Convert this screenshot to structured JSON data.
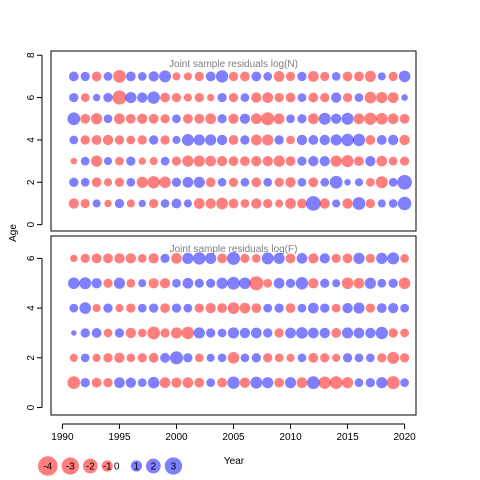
{
  "chart_data": [
    {
      "type": "scatter",
      "subtype": "bubble",
      "title": "Joint sample residuals log(N)",
      "ylabel": "Age",
      "xlim": [
        1989,
        2021
      ],
      "ylim": [
        -0.3,
        8.2
      ],
      "yticks": [
        0,
        2,
        4,
        6,
        8
      ],
      "ages": [
        1,
        2,
        3,
        4,
        5,
        6,
        7
      ],
      "years": [
        1991,
        1992,
        1993,
        1994,
        1995,
        1996,
        1997,
        1998,
        1999,
        2000,
        2001,
        2002,
        2003,
        2004,
        2005,
        2006,
        2007,
        2008,
        2009,
        2010,
        2011,
        2012,
        2013,
        2014,
        2015,
        2016,
        2017,
        2018,
        2019,
        2020
      ],
      "residuals": [
        [
          -0.8,
          -0.6,
          0.4,
          -0.3,
          0.6,
          -0.4,
          0.3,
          -0.6,
          0.5,
          0.7,
          0.4,
          -0.9,
          -0.8,
          -1.1,
          -0.7,
          -0.5,
          -0.8,
          -0.6,
          -0.4,
          -0.9,
          -0.7,
          2.0,
          -0.8,
          0.4,
          -0.8,
          1.4,
          -0.6,
          0.4,
          0.5,
          1.6
        ],
        [
          0.6,
          0.5,
          -0.7,
          -0.4,
          -0.6,
          0.5,
          -1.0,
          -1.3,
          -1.1,
          0.6,
          0.9,
          1.0,
          -0.7,
          0.5,
          -0.6,
          0.5,
          -0.7,
          0.5,
          -0.6,
          -0.8,
          0.5,
          -0.7,
          0.5,
          1.4,
          0.2,
          0.4,
          -0.5,
          -1.2,
          0.5,
          2.0
        ],
        [
          -0.2,
          0.5,
          -1.0,
          0.4,
          -0.5,
          0.6,
          -0.3,
          -0.4,
          0.5,
          -0.6,
          -1.0,
          -1.0,
          -0.9,
          -0.8,
          -0.7,
          -0.7,
          -0.8,
          -0.8,
          -1.0,
          -0.7,
          0.6,
          0.8,
          0.8,
          -1.0,
          -1.2,
          -0.7,
          0.8,
          -0.9,
          -0.5,
          -0.6
        ],
        [
          0.5,
          -0.6,
          -0.7,
          -0.8,
          -0.6,
          -0.5,
          -0.6,
          0.6,
          -0.6,
          0.4,
          1.2,
          1.0,
          1.0,
          0.8,
          -0.7,
          0.6,
          -0.9,
          -1.0,
          0.6,
          -0.5,
          0.8,
          0.7,
          0.8,
          1.0,
          1.3,
          1.3,
          -0.7,
          0.7,
          0.8,
          -0.8
        ],
        [
          1.4,
          -0.7,
          -1.0,
          0.5,
          -0.9,
          -0.7,
          -0.8,
          -0.7,
          -0.6,
          0.5,
          -0.7,
          -0.7,
          -0.9,
          0.6,
          -0.8,
          0.8,
          -0.9,
          -1.5,
          -0.9,
          0.5,
          0.6,
          -0.9,
          1.2,
          0.8,
          1.2,
          -0.9,
          -1.3,
          -1.1,
          -0.9,
          -0.7
        ],
        [
          0.6,
          -0.5,
          0.3,
          0.6,
          -1.8,
          1.0,
          0.8,
          1.3,
          -0.7,
          -0.6,
          -0.4,
          -0.6,
          -0.3,
          0.6,
          -0.6,
          0.5,
          -0.8,
          -0.9,
          -0.6,
          -0.7,
          0.5,
          -0.7,
          -0.6,
          0.8,
          -0.6,
          0.5,
          -1.1,
          -1.0,
          -0.9,
          0.2
        ],
        [
          0.7,
          0.6,
          -0.7,
          0.5,
          -1.4,
          0.7,
          0.5,
          0.8,
          1.2,
          -0.4,
          -0.4,
          -0.6,
          0.7,
          1.3,
          -0.6,
          -0.7,
          0.7,
          0.5,
          -0.9,
          -0.6,
          0.6,
          -0.9,
          -0.6,
          0.5,
          -0.7,
          -0.7,
          -1.0,
          0.4,
          -0.6,
          1.1
        ]
      ]
    },
    {
      "type": "scatter",
      "subtype": "bubble",
      "title": "Joint sample residuals log(F)",
      "xlabel": "Year",
      "xlim": [
        1989,
        2021
      ],
      "ylim": [
        -0.3,
        6.9
      ],
      "xticks": [
        1990,
        1995,
        2000,
        2005,
        2010,
        2015,
        2020
      ],
      "yticks": [
        0,
        2,
        4,
        6
      ],
      "ages": [
        1,
        2,
        3,
        4,
        5,
        6
      ],
      "years": [
        1991,
        1992,
        1993,
        1994,
        1995,
        1996,
        1997,
        1998,
        1999,
        2000,
        2001,
        2002,
        2003,
        2004,
        2005,
        2006,
        2007,
        2008,
        2009,
        2010,
        2011,
        2012,
        2013,
        2014,
        2015,
        2016,
        2017,
        2018,
        2019,
        2020
      ],
      "residuals": [
        [
          -1.4,
          0.6,
          -0.7,
          -0.6,
          0.9,
          0.8,
          0.5,
          1.1,
          -0.9,
          -0.8,
          -0.9,
          -0.7,
          0.5,
          -0.7,
          1.3,
          -0.8,
          1.2,
          1.0,
          -0.7,
          1.0,
          -0.9,
          1.4,
          -1.3,
          -1.4,
          -1.0,
          0.5,
          0.6,
          1.0,
          -1.5,
          0.5
        ],
        [
          -0.4,
          0.5,
          -0.4,
          -0.6,
          -0.8,
          -0.5,
          -0.6,
          -0.7,
          0.7,
          1.5,
          0.6,
          -0.5,
          0.4,
          0.5,
          -1.1,
          0.5,
          0.6,
          -0.6,
          -0.5,
          -0.4,
          0.5,
          -0.7,
          -0.6,
          -0.4,
          0.6,
          0.5,
          0.5,
          -0.6,
          -1.2,
          -0.6
        ],
        [
          0.1,
          0.6,
          0.7,
          -0.5,
          0.6,
          -0.8,
          -0.5,
          -1.4,
          -0.6,
          -1.0,
          -1.3,
          1.0,
          0.6,
          0.5,
          1.0,
          0.8,
          0.9,
          0.6,
          -0.6,
          0.9,
          1.1,
          0.9,
          0.8,
          -0.7,
          1.0,
          0.9,
          0.8,
          1.3,
          -0.6,
          -0.5
        ],
        [
          0.5,
          1.1,
          -0.4,
          0.6,
          -0.4,
          -0.6,
          0.5,
          0.6,
          -0.7,
          0.6,
          0.5,
          -0.6,
          -0.8,
          -0.7,
          -1.1,
          -0.9,
          -0.7,
          0.5,
          0.6,
          -0.7,
          0.5,
          0.9,
          0.6,
          -0.5,
          0.8,
          1.0,
          -0.6,
          0.7,
          0.8,
          0.5
        ],
        [
          1.1,
          1.2,
          0.8,
          -0.6,
          1.0,
          -0.5,
          0.4,
          -0.8,
          -0.8,
          0.5,
          0.9,
          0.6,
          0.6,
          1.0,
          1.4,
          1.1,
          -1.8,
          -0.5,
          0.9,
          0.6,
          1.3,
          -0.8,
          0.6,
          0.4,
          -1.1,
          -0.9,
          1.0,
          0.5,
          0.6,
          -1.1
        ],
        [
          -0.3,
          -0.6,
          -0.7,
          -0.7,
          -0.8,
          -0.8,
          -0.5,
          -0.8,
          0.6,
          -0.9,
          1.0,
          1.3,
          1.0,
          -0.7,
          1.5,
          -0.6,
          -0.5,
          1.2,
          1.0,
          -0.7,
          0.9,
          -0.8,
          0.8,
          -0.6,
          -0.7,
          1.0,
          -0.6,
          1.0,
          1.2,
          -0.5
        ]
      ]
    }
  ],
  "legend": {
    "values": [
      -4,
      -3,
      -2,
      -1,
      0,
      1,
      2,
      3
    ],
    "labels": [
      "-4",
      "-3",
      "-2",
      "-1",
      "0",
      "1",
      "2",
      "3"
    ],
    "placement": "bottom-left"
  },
  "colors": {
    "negative": "#ff0000",
    "positive": "#0000ff",
    "opacity": 0.5,
    "title_text": "#808080"
  }
}
